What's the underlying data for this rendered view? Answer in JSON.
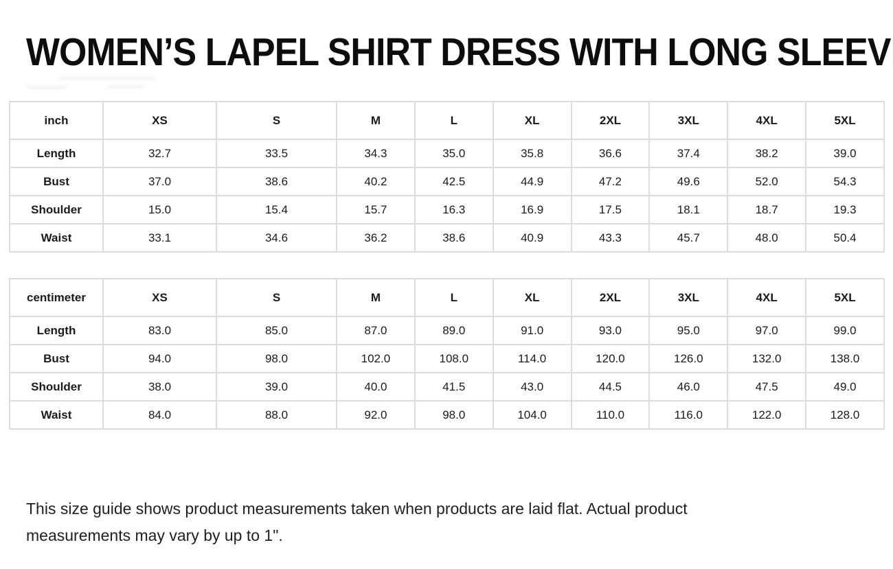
{
  "title": "WOMEN’S LAPEL SHIRT DRESS WITH LONG SLEEVE",
  "sizes": [
    "XS",
    "S",
    "M",
    "L",
    "XL",
    "2XL",
    "3XL",
    "4XL",
    "5XL"
  ],
  "tables": [
    {
      "unit_label": "inch",
      "rows": [
        {
          "label": "Length",
          "values": [
            "32.7",
            "33.5",
            "34.3",
            "35.0",
            "35.8",
            "36.6",
            "37.4",
            "38.2",
            "39.0"
          ]
        },
        {
          "label": "Bust",
          "values": [
            "37.0",
            "38.6",
            "40.2",
            "42.5",
            "44.9",
            "47.2",
            "49.6",
            "52.0",
            "54.3"
          ]
        },
        {
          "label": "Shoulder",
          "values": [
            "15.0",
            "15.4",
            "15.7",
            "16.3",
            "16.9",
            "17.5",
            "18.1",
            "18.7",
            "19.3"
          ]
        },
        {
          "label": "Waist",
          "values": [
            "33.1",
            "34.6",
            "36.2",
            "38.6",
            "40.9",
            "43.3",
            "45.7",
            "48.0",
            "50.4"
          ]
        }
      ]
    },
    {
      "unit_label": "centimeter",
      "rows": [
        {
          "label": "Length",
          "values": [
            "83.0",
            "85.0",
            "87.0",
            "89.0",
            "91.0",
            "93.0",
            "95.0",
            "97.0",
            "99.0"
          ]
        },
        {
          "label": "Bust",
          "values": [
            "94.0",
            "98.0",
            "102.0",
            "108.0",
            "114.0",
            "120.0",
            "126.0",
            "132.0",
            "138.0"
          ]
        },
        {
          "label": "Shoulder",
          "values": [
            "38.0",
            "39.0",
            "40.0",
            "41.5",
            "43.0",
            "44.5",
            "46.0",
            "47.5",
            "49.0"
          ]
        },
        {
          "label": "Waist",
          "values": [
            "84.0",
            "88.0",
            "92.0",
            "98.0",
            "104.0",
            "110.0",
            "116.0",
            "122.0",
            "128.0"
          ]
        }
      ]
    }
  ],
  "note": "This size guide shows product measurements taken when products are laid flat. Actual product measurements may vary by up to 1\".",
  "colors": {
    "text": "#1b1b1b",
    "table_border": "#dcdcdc",
    "background": "#ffffff"
  }
}
